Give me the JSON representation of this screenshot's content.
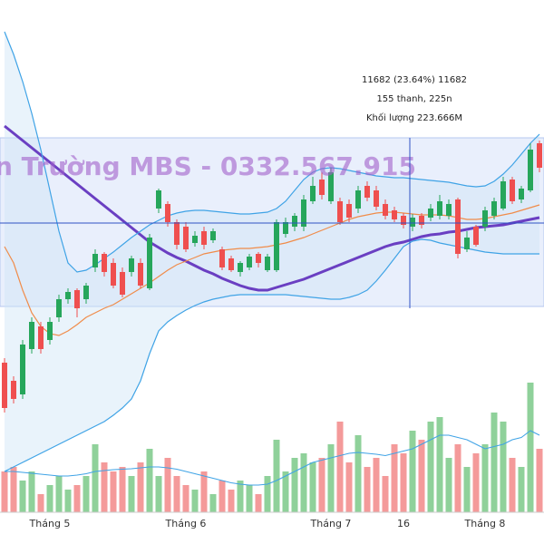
{
  "chart_data": {
    "type": "candlestick",
    "watermark": "n Trường MBS - 0332.567.915",
    "tooltip": [
      "11682 (23.64%) 11682",
      "155 thanh, 225n",
      "Khối lượng 223.666M"
    ],
    "categories": [
      null,
      null,
      null,
      null,
      null,
      "Tháng 5",
      null,
      null,
      null,
      null,
      null,
      null,
      null,
      null,
      null,
      null,
      null,
      null,
      null,
      null,
      "Tháng 6",
      null,
      null,
      null,
      null,
      null,
      null,
      null,
      null,
      null,
      null,
      null,
      null,
      null,
      null,
      null,
      "Tháng 7",
      null,
      null,
      null,
      null,
      null,
      null,
      null,
      "16",
      null,
      null,
      null,
      null,
      null,
      null,
      null,
      null,
      "Tháng 8",
      null,
      null,
      null,
      null,
      null,
      null
    ],
    "ylim": [
      8142,
      14142
    ],
    "volume_ylim": [
      0,
      300
    ],
    "up_color": "#26a65b",
    "down_color": "#ef4f4f",
    "volume_up_color": "#8fd19a",
    "volume_down_color": "#f49a9a",
    "open": [
      10142,
      9942,
      9792,
      10292,
      10542,
      10392,
      10642,
      10842,
      10942,
      10842,
      11192,
      11342,
      11242,
      11142,
      11142,
      11242,
      10962,
      11842,
      11892,
      11692,
      11642,
      11462,
      11592,
      11492,
      11392,
      11292,
      11142,
      11192,
      11342,
      11162,
      11162,
      11562,
      11642,
      11642,
      11922,
      12162,
      11922,
      11922,
      11892,
      11842,
      12092,
      12042,
      11892,
      11822,
      11762,
      11642,
      11762,
      11742,
      11762,
      11762,
      11942,
      11392,
      11642,
      11642,
      11762,
      11842,
      12162,
      11942,
      12042,
      12562
    ],
    "high": [
      10192,
      9992,
      10392,
      10642,
      10592,
      10642,
      10892,
      10962,
      10962,
      11022,
      11392,
      11362,
      11292,
      11192,
      11322,
      11292,
      11562,
      12062,
      11922,
      11722,
      11692,
      11592,
      11642,
      11622,
      11422,
      11322,
      11262,
      11342,
      11362,
      11342,
      11722,
      11742,
      11792,
      11992,
      12192,
      12242,
      12292,
      11962,
      11942,
      12092,
      12142,
      12092,
      11942,
      11862,
      11792,
      11782,
      11792,
      11892,
      11992,
      11942,
      11962,
      11592,
      11662,
      11862,
      11962,
      12192,
      12192,
      12092,
      12562,
      12592
    ],
    "low": [
      9592,
      9692,
      9742,
      10242,
      10242,
      10342,
      10592,
      10792,
      10642,
      10792,
      11142,
      11092,
      10962,
      10862,
      11092,
      10962,
      10942,
      11792,
      11642,
      11392,
      11362,
      11422,
      11392,
      11462,
      11162,
      11142,
      11092,
      11162,
      11192,
      11142,
      11142,
      11522,
      11592,
      11592,
      11892,
      11942,
      11892,
      11662,
      11692,
      11792,
      11922,
      11822,
      11722,
      11692,
      11622,
      11592,
      11622,
      11702,
      11722,
      11722,
      11292,
      11362,
      11422,
      11592,
      11722,
      11822,
      11892,
      11902,
      12022,
      12242
    ],
    "close": [
      9642,
      9742,
      10342,
      10592,
      10292,
      10592,
      10842,
      10922,
      10742,
      10992,
      11342,
      11142,
      10992,
      10892,
      11292,
      10992,
      11522,
      12042,
      11692,
      11442,
      11392,
      11542,
      11442,
      11592,
      11192,
      11162,
      11242,
      11312,
      11242,
      11312,
      11692,
      11692,
      11762,
      11942,
      12092,
      11992,
      12242,
      11692,
      11742,
      12042,
      11962,
      11862,
      11762,
      11722,
      11662,
      11742,
      11662,
      11842,
      11922,
      11892,
      11342,
      11522,
      11442,
      11822,
      11922,
      12142,
      11922,
      12062,
      12492,
      12292
    ],
    "volume": [
      90,
      100,
      70,
      90,
      40,
      60,
      80,
      50,
      60,
      80,
      150,
      110,
      90,
      100,
      80,
      110,
      140,
      80,
      120,
      80,
      60,
      50,
      90,
      40,
      70,
      50,
      70,
      60,
      40,
      80,
      160,
      90,
      120,
      130,
      110,
      120,
      150,
      200,
      110,
      170,
      100,
      120,
      80,
      150,
      130,
      180,
      160,
      200,
      210,
      120,
      150,
      100,
      130,
      150,
      220,
      200,
      120,
      100,
      286,
      140
    ],
    "lines": [
      {
        "color": "#6a3fc2",
        "width": 3,
        "values": [
          12752,
          12672,
          12592,
          12512,
          12432,
          12352,
          12272,
          12192,
          12112,
          12032,
          11952,
          11872,
          11792,
          11712,
          11632,
          11552,
          11472,
          11412,
          11352,
          11302,
          11262,
          11212,
          11162,
          11122,
          11072,
          11032,
          10992,
          10962,
          10942,
          10942,
          10972,
          11002,
          11032,
          11062,
          11102,
          11142,
          11182,
          11222,
          11262,
          11302,
          11342,
          11382,
          11422,
          11452,
          11472,
          11502,
          11532,
          11552,
          11562,
          11582,
          11592,
          11612,
          11632,
          11642,
          11652,
          11662,
          11682,
          11702,
          11722,
          11742
        ]
      },
      {
        "color": "#f08c4a",
        "width": 1.2,
        "values": [
          11422,
          11242,
          10942,
          10692,
          10542,
          10462,
          10442,
          10492,
          10562,
          10642,
          10692,
          10742,
          10782,
          10842,
          10902,
          10962,
          11022,
          11092,
          11162,
          11222,
          11262,
          11302,
          11342,
          11362,
          11382,
          11392,
          11402,
          11402,
          11412,
          11422,
          11442,
          11462,
          11492,
          11522,
          11562,
          11602,
          11642,
          11682,
          11722,
          11752,
          11772,
          11792,
          11802,
          11802,
          11792,
          11782,
          11772,
          11772,
          11772,
          11762,
          11742,
          11722,
          11722,
          11732,
          11752,
          11772,
          11792,
          11822,
          11852,
          11882
        ]
      },
      {
        "color": "#3fa3e6",
        "width": 1.2,
        "values": [
          13792,
          13542,
          13242,
          12892,
          12492,
          12042,
          11592,
          11242,
          11142,
          11162,
          11222,
          11292,
          11362,
          11442,
          11522,
          11592,
          11662,
          11712,
          11762,
          11792,
          11812,
          11822,
          11822,
          11812,
          11802,
          11792,
          11782,
          11782,
          11792,
          11802,
          11842,
          11922,
          12042,
          12162,
          12242,
          12282,
          12292,
          12282,
          12262,
          12242,
          12222,
          12202,
          12192,
          12182,
          12182,
          12172,
          12162,
          12152,
          12142,
          12132,
          12112,
          12092,
          12082,
          12092,
          12142,
          12222,
          12322,
          12442,
          12562,
          12662
        ]
      },
      {
        "color": "#3fa3e6",
        "width": 1.2,
        "values": [
          8942,
          8992,
          9042,
          9092,
          9142,
          9192,
          9242,
          9292,
          9342,
          9392,
          9442,
          9492,
          9562,
          9642,
          9742,
          9942,
          10242,
          10492,
          10592,
          10662,
          10722,
          10772,
          10812,
          10842,
          10862,
          10882,
          10892,
          10892,
          10892,
          10892,
          10892,
          10892,
          10882,
          10872,
          10862,
          10852,
          10842,
          10842,
          10862,
          10892,
          10942,
          11042,
          11162,
          11292,
          11422,
          11482,
          11502,
          11492,
          11462,
          11442,
          11422,
          11402,
          11382,
          11362,
          11352,
          11342,
          11342,
          11342,
          11342,
          11342
        ]
      }
    ],
    "volume_line": {
      "color": "#3fa3e6",
      "values": [
        90,
        90,
        88,
        86,
        84,
        82,
        80,
        80,
        82,
        85,
        90,
        92,
        94,
        95,
        96,
        98,
        100,
        100,
        98,
        95,
        90,
        85,
        80,
        75,
        70,
        65,
        62,
        60,
        60,
        62,
        70,
        80,
        90,
        100,
        110,
        115,
        120,
        125,
        130,
        132,
        130,
        128,
        125,
        130,
        135,
        140,
        150,
        160,
        170,
        170,
        165,
        160,
        150,
        140,
        145,
        150,
        160,
        165,
        180,
        170
      ]
    }
  }
}
